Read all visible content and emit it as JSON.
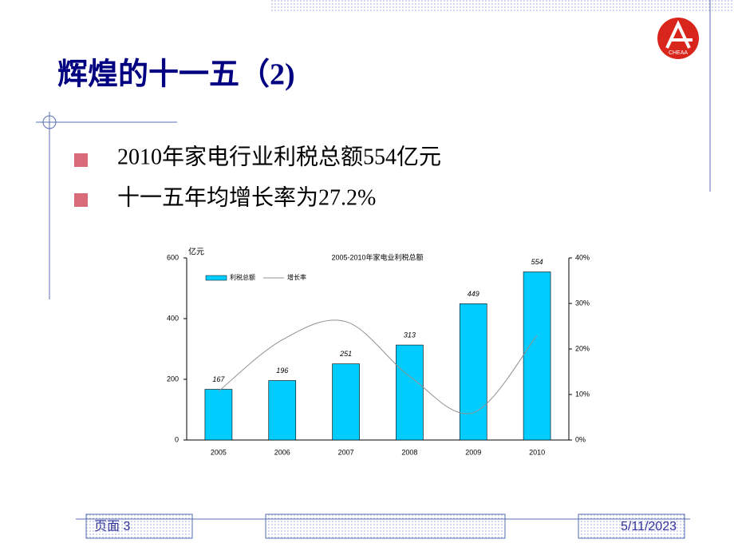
{
  "slide": {
    "title": "辉煌的十一五（2)",
    "bullets": [
      "2010年家电行业利税总额554亿元",
      "十一五年均增长率为27.2%"
    ],
    "logo_text": "CHEAA",
    "footer": {
      "page": "页面 3",
      "date": "5/11/2023"
    }
  },
  "chart_data": {
    "type": "bar",
    "title": "2005-2010年家电业利税总额",
    "y_label": "亿元",
    "categories": [
      "2005",
      "2006",
      "2007",
      "2008",
      "2009",
      "2010"
    ],
    "series": [
      {
        "name": "利税总额",
        "type": "bar",
        "color": "#00ccff",
        "values": [
          167,
          196,
          251,
          313,
          449,
          554
        ]
      },
      {
        "name": "增长率",
        "type": "line",
        "color": "#909090",
        "axis": "y2",
        "values": [
          10.7,
          22,
          26,
          14,
          6,
          23
        ]
      }
    ],
    "ylim": [
      0,
      600
    ],
    "yticks": [
      0,
      200,
      400,
      600
    ],
    "y2lim": [
      0,
      40
    ],
    "y2ticks": [
      {
        "value": 0,
        "label": "0%"
      },
      {
        "value": 10,
        "label": "10%"
      },
      {
        "value": 20,
        "label": "20%"
      },
      {
        "value": 30,
        "label": "30%"
      },
      {
        "value": 40,
        "label": "40%"
      }
    ]
  }
}
